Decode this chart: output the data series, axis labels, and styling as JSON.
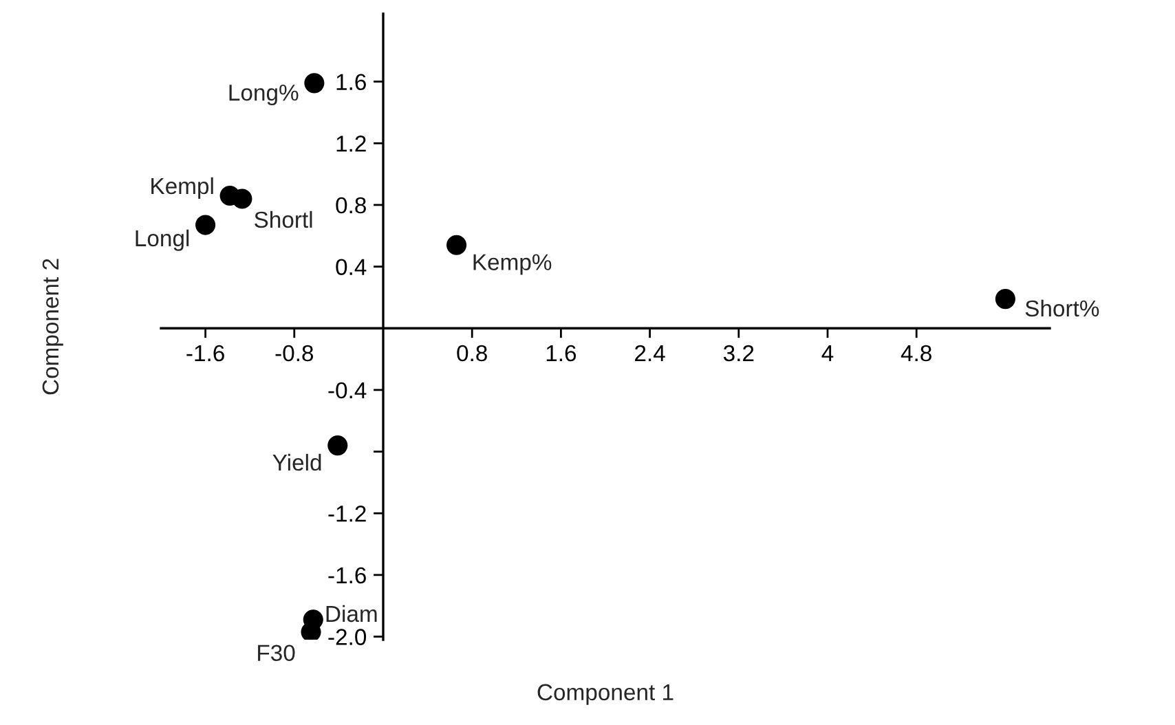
{
  "chart_data": {
    "type": "scatter",
    "xlabel": "Component 1",
    "ylabel": "Component 2",
    "x": [
      -0.62,
      -1.38,
      -1.27,
      -1.6,
      0.66,
      5.6,
      -0.41,
      -0.63,
      -0.65
    ],
    "series": [
      {
        "color": "#000000",
        "values": [
          1.59,
          0.86,
          0.84,
          0.67,
          0.54,
          0.19,
          -0.76,
          -1.89,
          -1.97
        ]
      }
    ],
    "annotations": [
      {
        "text": "Long%",
        "x": -0.62,
        "y": 1.59
      },
      {
        "text": "Kempl",
        "x": -1.38,
        "y": 0.86
      },
      {
        "text": "Shortl",
        "x": -1.27,
        "y": 0.84
      },
      {
        "text": "Longl",
        "x": -1.6,
        "y": 0.67
      },
      {
        "text": "Kemp%",
        "x": 0.66,
        "y": 0.54
      },
      {
        "text": "Short%",
        "x": 5.6,
        "y": 0.19
      },
      {
        "text": "Yield",
        "x": -0.41,
        "y": -0.76
      },
      {
        "text": "Diam",
        "x": -0.63,
        "y": -1.89
      },
      {
        "text": "F30",
        "x": -0.65,
        "y": -1.97
      }
    ],
    "xlim": [
      -2,
      6
    ],
    "ylim": [
      -2.02,
      2.04
    ],
    "xticks": [
      -1.6,
      -0.8,
      0.8,
      1.6,
      2.4,
      3.2,
      4,
      4.8
    ],
    "yticks": [
      1.6,
      1.2,
      0.8,
      0.4,
      -0.4,
      {
        "value": -0.8,
        "label": null
      },
      -1.2,
      -1.6,
      {
        "value": -2,
        "label": "-2.0"
      }
    ],
    "grid": false,
    "legend": false,
    "marker": "circle"
  }
}
